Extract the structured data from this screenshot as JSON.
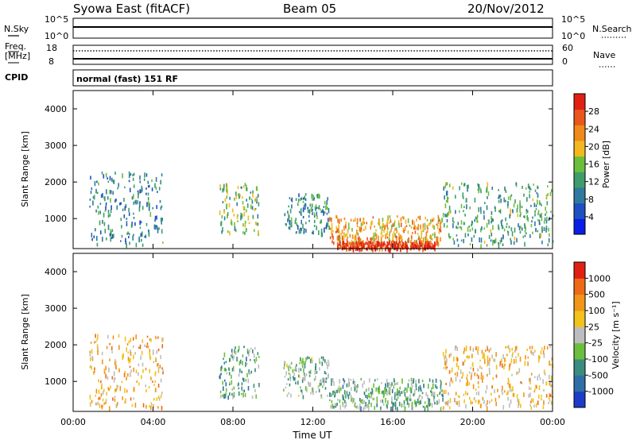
{
  "header": {
    "station": "Syowa East (fitACF)",
    "beam": "Beam 05",
    "date": "20/Nov/2012"
  },
  "strip": {
    "nsky_label": "N.Sky",
    "nsky_ticks": [
      "10^5",
      "10^0"
    ],
    "nsearch_label": "N.Search",
    "nsearch_ticks": [
      "10^5",
      "10^0"
    ],
    "freq_label": "Freq.",
    "freq_unit": "[MHz]",
    "freq_ticks": [
      "18",
      "8"
    ],
    "nave_label": "Nave",
    "nave_ticks": [
      "60",
      "0"
    ],
    "cpid_label": "CPID",
    "cpid_value": "normal (fast) 151 RF"
  },
  "colors": {
    "power_scale": [
      "#0a1ee6",
      "#1f4fc2",
      "#2f7a9e",
      "#3f9d6b",
      "#6cbf3c",
      "#f2b81d",
      "#f08a1a",
      "#e9571c",
      "#e02012"
    ],
    "velocity_scale": [
      "#1c3cc8",
      "#2f6ea6",
      "#3a8c7e",
      "#6cbf3c",
      "#bdbdbd",
      "#f2c21d",
      "#f0961a",
      "#ee6a17",
      "#e02012"
    ]
  },
  "chart_data": [
    {
      "type": "heatmap",
      "panel": "power",
      "xlabel": "Time UT",
      "ylabel": "Slant Range [km]",
      "x_ticks": [
        "00:00",
        "04:00",
        "08:00",
        "12:00",
        "16:00",
        "20:00",
        "00:00"
      ],
      "xlim_hours": [
        0,
        24
      ],
      "y_ticks": [
        1000,
        2000,
        3000,
        4000
      ],
      "ylim_km": [
        180,
        4500
      ],
      "colorbar_label": "Power [dB]",
      "colorbar_ticks": [
        "28",
        "24",
        "20",
        "16",
        "12",
        "8",
        "4"
      ],
      "colorbar_range": [
        0,
        30
      ],
      "features": [
        {
          "hours": [
            0.8,
            4.5
          ],
          "range_km": [
            300,
            2300
          ],
          "level": 9
        },
        {
          "hours": [
            7.3,
            9.3
          ],
          "range_km": [
            600,
            2000
          ],
          "level": 14
        },
        {
          "hours": [
            10.5,
            12.8
          ],
          "range_km": [
            600,
            1700
          ],
          "level": 10
        },
        {
          "hours": [
            12.8,
            18.5
          ],
          "range_km": [
            300,
            1100
          ],
          "level": 20
        },
        {
          "hours": [
            13.2,
            18.2
          ],
          "range_km": [
            200,
            400
          ],
          "level": 28
        },
        {
          "hours": [
            18.5,
            24.0
          ],
          "range_km": [
            300,
            2000
          ],
          "level": 12
        }
      ]
    },
    {
      "type": "heatmap",
      "panel": "velocity",
      "xlabel": "Time UT",
      "ylabel": "Slant Range [km]",
      "x_ticks": [
        "00:00",
        "04:00",
        "08:00",
        "12:00",
        "16:00",
        "20:00",
        "00:00"
      ],
      "xlim_hours": [
        0,
        24
      ],
      "y_ticks": [
        1000,
        2000,
        3000,
        4000
      ],
      "ylim_km": [
        180,
        4500
      ],
      "colorbar_label": "Velocity [m s⁻¹]",
      "colorbar_ticks": [
        "1000",
        "500",
        "100",
        "25",
        "-25",
        "-100",
        "-500",
        "-1000"
      ],
      "colorbar_range": [
        -1000,
        1000
      ],
      "features": [
        {
          "hours": [
            0.8,
            4.5
          ],
          "range_km": [
            300,
            2300
          ],
          "level": 300
        },
        {
          "hours": [
            7.3,
            9.3
          ],
          "range_km": [
            600,
            2000
          ],
          "level": -300
        },
        {
          "hours": [
            10.5,
            12.8
          ],
          "range_km": [
            600,
            1700
          ],
          "level": -200
        },
        {
          "hours": [
            12.8,
            18.5
          ],
          "range_km": [
            300,
            1100
          ],
          "level": -250
        },
        {
          "hours": [
            18.5,
            24.0
          ],
          "range_km": [
            300,
            2000
          ],
          "level": 250
        }
      ]
    }
  ]
}
